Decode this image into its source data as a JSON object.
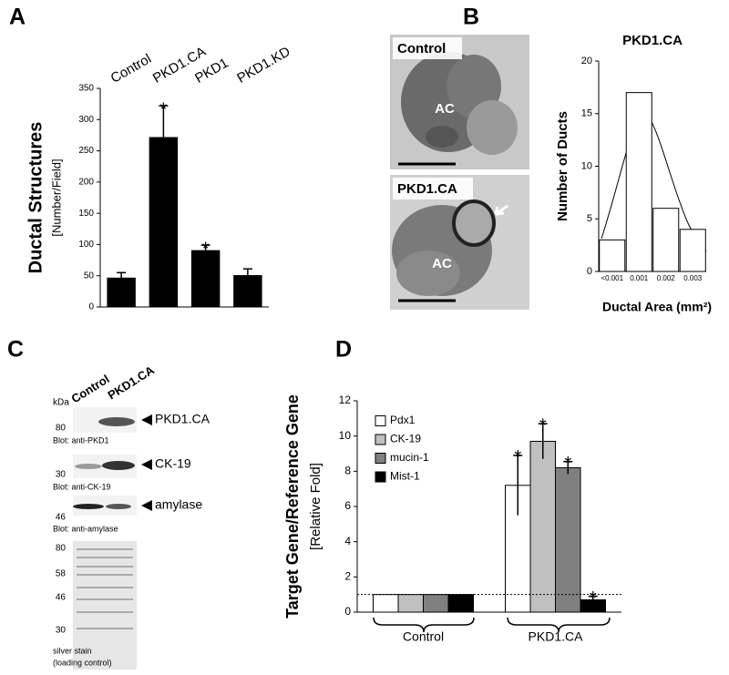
{
  "panels": [
    "A",
    "B",
    "C",
    "D"
  ],
  "chart_data": [
    {
      "type": "bar",
      "ylabel": "Ductal Structures",
      "ylabel_sub": "[Number/Field]",
      "categories": [
        "Control",
        "PKD1.CA",
        "PKD1",
        "PKD1.KD"
      ],
      "values": [
        47,
        272,
        91,
        51
      ],
      "errors": [
        8,
        50,
        8,
        10
      ],
      "significance": [
        null,
        "*",
        "*",
        null
      ],
      "color": "#000000",
      "ylim": [
        0,
        350
      ],
      "yticks": [
        0,
        50,
        100,
        150,
        200,
        250,
        300,
        350
      ]
    },
    {
      "type": "bar",
      "title": "PKD1.CA",
      "ylabel": "Number of Ducts",
      "xlabel": "Ductal Area (mm²)",
      "categories": [
        "<0.001",
        "0.001",
        "0.002",
        "0.003"
      ],
      "values": [
        3,
        17,
        6,
        4
      ],
      "color": "#ffffff",
      "edgecolor": "#000000",
      "ylim": [
        0,
        20
      ],
      "yticks": [
        0,
        5,
        10,
        15,
        20
      ]
    },
    {
      "type": "bar",
      "ylabel": "Target Gene/Reference Gene",
      "ylabel_sub": "[Relative Fold]",
      "categories": [
        "Control",
        "PKD1.CA"
      ],
      "series": [
        {
          "name": "Pdx1",
          "color": "#ffffff",
          "values": [
            1,
            7.2
          ],
          "errors": [
            null,
            1.7
          ],
          "significance": [
            null,
            "*"
          ]
        },
        {
          "name": "CK-19",
          "color": "#c0c0c0",
          "values": [
            1,
            9.7
          ],
          "errors": [
            null,
            1.0
          ],
          "significance": [
            null,
            "*"
          ]
        },
        {
          "name": "mucin-1",
          "color": "#808080",
          "values": [
            1,
            8.2
          ],
          "errors": [
            null,
            0.35
          ],
          "significance": [
            null,
            "*"
          ]
        },
        {
          "name": "Mist-1",
          "color": "#000000",
          "values": [
            1,
            0.7
          ],
          "errors": [
            null,
            0.2
          ],
          "significance": [
            null,
            "*"
          ]
        }
      ],
      "reference_line": 1,
      "ylim": [
        0,
        12
      ],
      "yticks": [
        0,
        2,
        4,
        6,
        8,
        10,
        12
      ]
    }
  ],
  "micrographs": {
    "labels": [
      "Control",
      "PKD1.CA"
    ],
    "region_labels": [
      "AC",
      "AC"
    ]
  },
  "blot": {
    "kda": "kDa",
    "lanes": [
      "Control",
      "PKD1.CA"
    ],
    "strips": [
      {
        "marker": "80",
        "band": "PKD1.CA",
        "caption": "Blot: anti-PKD1"
      },
      {
        "marker": "30",
        "band": "CK-19",
        "caption": "Blot: anti-CK-19"
      },
      {
        "marker": "46",
        "band": "amylase",
        "caption": "Blot: anti-amylase"
      }
    ],
    "silver_markers": [
      "80",
      "58",
      "46",
      "30"
    ],
    "silver_caption": [
      "silver stain",
      "(loading control)"
    ]
  }
}
